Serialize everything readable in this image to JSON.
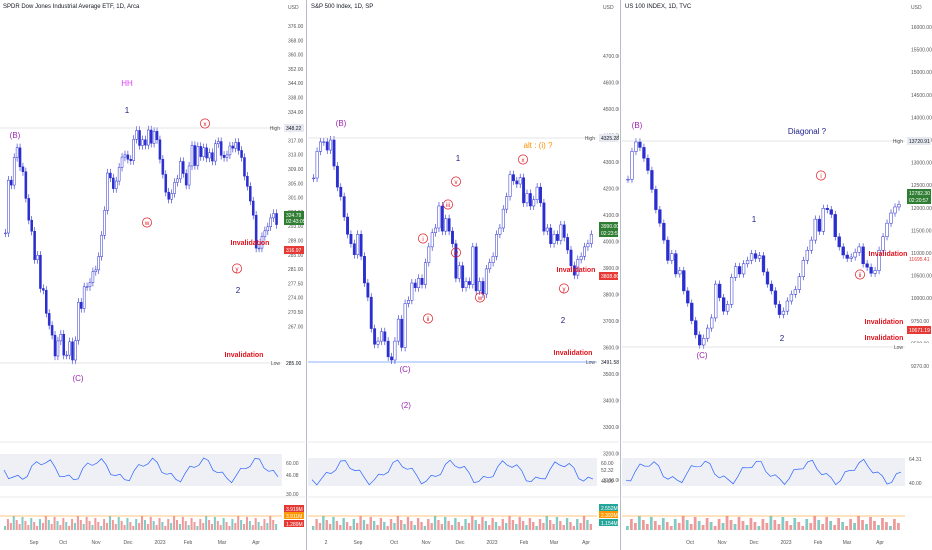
{
  "colors": {
    "candle": "#2a2ecf",
    "wave": "#1c1c8a",
    "red": "#e0141e",
    "magenta": "#9c27b0",
    "pink": "#e040fb",
    "axis": "#555",
    "orange": "#ff8f00",
    "blue": "#2962ff",
    "green": "#4caf50"
  },
  "chart_data": [
    {
      "type": "candlestick",
      "title": "SPDR Dow Jones Industrial Average ETF, 1D, Arca",
      "currency": "USD",
      "y_ticks": [
        "376.00",
        "368.00",
        "360.00",
        "352.00",
        "344.00",
        "338.00",
        "334.00",
        "326.00",
        "317.00",
        "313.00",
        "309.00",
        "305.00",
        "301.00",
        "297.00",
        "293.00",
        "289.00",
        "285.00",
        "281.00",
        "277.50",
        "274.00",
        "270.50",
        "267.00"
      ],
      "x_ticks": [
        "Sep",
        "Oct",
        "Nov",
        "Dec",
        "2023",
        "Feb",
        "Mar",
        "Apr"
      ],
      "price_tags": [
        {
          "label": "High",
          "value": "348.22"
        },
        {
          "label": "",
          "value": "324.79"
        },
        {
          "label": "",
          "value": "02:43:05"
        },
        {
          "label": "",
          "value": "316.97"
        },
        {
          "label": "",
          "value": "286.82"
        },
        {
          "label": "Low",
          "value": "285.00"
        }
      ],
      "rsi_ticks": [
        "60.00",
        "46.08",
        "30.00"
      ],
      "volume_tags": [
        "3.919M",
        "3.911M",
        "1.289M"
      ],
      "annotations": [
        "HH",
        "1",
        "(B)",
        "x",
        "w",
        "y",
        "2",
        "(C)",
        "Invalidation",
        "Invalidation"
      ],
      "series": [
        {
          "close": [
            322.4,
            334.3,
            333.2,
            339.4,
            341.6,
            337.3,
            336.2,
            330.2,
            325.3,
            322.8,
            316.4,
            317.4,
            309.9,
            309.5,
            304.3,
            301.6,
            299.4,
            294.7,
            298.1,
            299.6,
            294.9,
            294.9,
            297.9,
            293.8,
            298.2,
            306.8,
            305.4,
            310.3,
            310.3,
            311.3,
            313.7,
            314.1,
            317.1,
            321.9,
            327.5,
            335.9,
            334.8,
            332.4,
            334.1,
            337.2,
            339.5,
            340.0,
            339.0,
            338.7,
            343.5,
            345.5,
            342.1,
            343.4,
            342.2,
            345.6,
            342.6,
            345.3,
            343.4,
            339.0,
            335.6,
            331.6,
            330.0,
            331.3,
            333.8,
            334.6,
            338.5,
            335.8,
            333.2,
            337.5,
            342.1,
            337.6,
            341.9,
            339.6,
            341.6,
            339.3,
            340.5,
            338.6,
            342.5,
            343.0,
            339.9,
            339.4,
            340.0,
            342.0,
            341.5,
            342.8,
            341.0,
            339.4,
            335.2,
            332.9,
            329.6,
            326.4,
            319.0,
            319.0,
            321.6,
            322.9,
            323.8,
            325.8,
            326.8,
            324.3
          ]
        }
      ]
    },
    {
      "type": "candlestick",
      "title": "S&P 500 Index, 1D, SP",
      "currency": "USD",
      "y_ticks": [
        "4700.00",
        "4600.00",
        "4500.00",
        "4400.00",
        "4300.00",
        "4200.00",
        "4100.00",
        "4000.00",
        "3900.00",
        "3800.00",
        "3700.00",
        "3600.00",
        "3500.00",
        "3400.00",
        "3300.00",
        "3200.00",
        "3100.00"
      ],
      "x_ticks": [
        "2",
        "Sep",
        "Oct",
        "Nov",
        "Dec",
        "2023",
        "Feb",
        "Mar",
        "Apr"
      ],
      "price_tags": [
        {
          "label": "High",
          "value": "4325.28"
        },
        {
          "label": "",
          "value": "3990.00"
        },
        {
          "label": "",
          "value": "02:23:57"
        },
        {
          "label": "",
          "value": "3808.86"
        },
        {
          "label": "Low",
          "value": "3491.58"
        }
      ],
      "rsi_ticks": [
        "60.00",
        "52.32",
        "40.00"
      ],
      "volume_tags": [
        "2.552M",
        "2.392M",
        "1.154M"
      ],
      "annotations": [
        "(B)",
        "1",
        "alt : (i) ?",
        "x",
        "v",
        "iii",
        "iv",
        "ii",
        "i",
        "w",
        "y",
        "2",
        "(C)",
        "(2)",
        "Invalidation",
        "Invalidation"
      ],
      "series": [
        {
          "close": [
            4169,
            4254,
            4284,
            4284,
            4258,
            4290,
            4207,
            4140,
            4110,
            4045,
            3990,
            3960,
            3925,
            3990,
            3920,
            3835,
            3790,
            3690,
            3640,
            3650,
            3680,
            3650,
            3600,
            3590,
            3650,
            3720,
            3630,
            3770,
            3780,
            3835,
            3820,
            3850,
            3830,
            3900,
            3950,
            3995,
            4010,
            4080,
            4000,
            4040,
            4000,
            3960,
            3850,
            3890,
            3820,
            3840,
            3830,
            3950,
            3810,
            3840,
            3800,
            3880,
            3900,
            3920,
            3990,
            4010,
            4070,
            4110,
            4180,
            4160,
            4150,
            4170,
            4090,
            4120,
            4080,
            4100,
            4140,
            4090,
            4000,
            4010,
            3960,
            3990,
            3970,
            4020,
            3980,
            3940,
            3890,
            3860,
            3910,
            3920,
            3950,
            3960,
            3990
          ]
        }
      ]
    },
    {
      "type": "candlestick",
      "title": "US 100 INDEX, 1D, TVC",
      "currency": "USD",
      "y_ticks": [
        "16000.00",
        "15500.00",
        "15000.00",
        "14500.00",
        "14000.00",
        "13500.00",
        "13000.00",
        "12500.00",
        "12000.00",
        "11500.00",
        "11000.00",
        "10500.00",
        "10000.00",
        "9750.00",
        "9500.00",
        "9270.00"
      ],
      "x_ticks": [
        "Oct",
        "Nov",
        "Dec",
        "2023",
        "Feb",
        "Mar",
        "Apr"
      ],
      "price_tags": [
        {
          "label": "High",
          "value": "13720.91"
        },
        {
          "label": "",
          "value": "12782.30"
        },
        {
          "label": "",
          "value": "02:20:57"
        },
        {
          "label": "",
          "value": "11695.41"
        },
        {
          "label": "",
          "value": "10671.19"
        },
        {
          "label": "",
          "value": "10440.64"
        },
        {
          "label": "Low",
          "value": ""
        }
      ],
      "rsi_ticks": [
        "64.31",
        "40.00"
      ],
      "volume_tags": [],
      "annotations": [
        "(B)",
        "Diagonal ?",
        "1",
        "i",
        "ii",
        "2",
        "(C)",
        "Invalidation",
        "Invalidation",
        "Invalidation"
      ],
      "series": [
        {
          "close": [
            13150,
            13560,
            13700,
            13620,
            13460,
            13280,
            13000,
            12700,
            12500,
            12250,
            11950,
            12050,
            11750,
            11800,
            11500,
            11320,
            11060,
            10850,
            10700,
            10800,
            10950,
            11100,
            11600,
            11400,
            11200,
            11300,
            11700,
            11860,
            11750,
            11900,
            11950,
            12050,
            11980,
            12020,
            11780,
            11600,
            11500,
            11300,
            11150,
            11200,
            11350,
            11450,
            11520,
            11710,
            11950,
            12100,
            12250,
            12560,
            12380,
            12720,
            12700,
            12630,
            12300,
            12150,
            12030,
            11980,
            12000,
            12070,
            12150,
            11900,
            11850,
            11760,
            11800,
            12100,
            12300,
            12500,
            12650,
            12740,
            12780
          ]
        }
      ]
    }
  ]
}
